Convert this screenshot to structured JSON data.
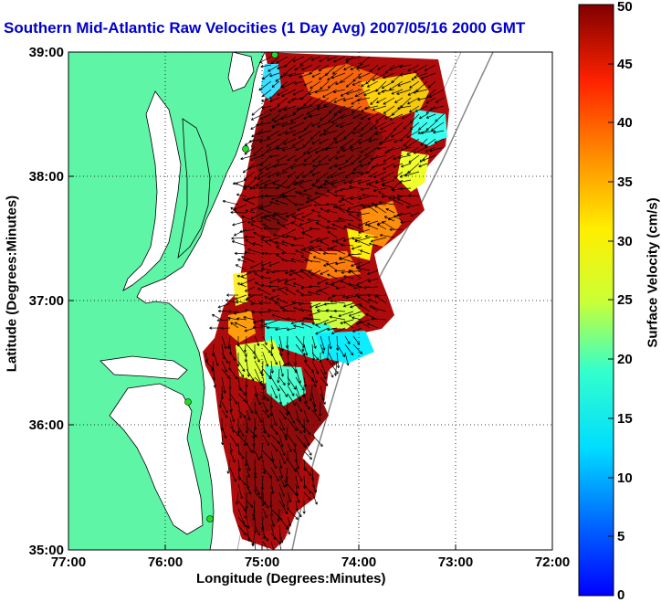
{
  "title": "Southern Mid-Atlantic Raw Velocities (1 Day Avg) 2007/05/16 2000 GMT",
  "xlabel": "Longitude (Degrees:Minutes)",
  "ylabel": "Latitude (Degrees:Minutes)",
  "colorbar_label": "Surface Velocity (cm/s)",
  "x_ticks": [
    "77:00",
    "76:00",
    "75:00",
    "74:00",
    "73:00",
    "72:00"
  ],
  "y_ticks": [
    "39:00",
    "38:00",
    "37:00",
    "36:00",
    "35:00"
  ],
  "cb_ticks": [
    "0",
    "5",
    "10",
    "15",
    "20",
    "25",
    "30",
    "35",
    "40",
    "45",
    "50"
  ],
  "colors": {
    "land": "#5ff5a6",
    "title": "#0000cc",
    "station": "#22dd22"
  },
  "chart_data": {
    "type": "heatmap",
    "title": "Southern Mid-Atlantic Raw Velocities (1 Day Avg) 2007/05/16 2000 GMT",
    "xlabel": "Longitude (Degrees:Minutes)",
    "ylabel": "Latitude (Degrees:Minutes)",
    "xlim": [
      -77,
      -72
    ],
    "ylim": [
      35,
      39
    ],
    "colorbar": {
      "label": "Surface Velocity (cm/s)",
      "range": [
        0,
        50
      ],
      "colormap": "jet"
    },
    "grid": true,
    "stations": [
      {
        "lon": -74.9,
        "lat": 39.0
      },
      {
        "lon": -75.1,
        "lat": 38.22
      },
      {
        "lon": -75.5,
        "lat": 36.18
      },
      {
        "lon": -75.45,
        "lat": 35.25
      }
    ]
  }
}
